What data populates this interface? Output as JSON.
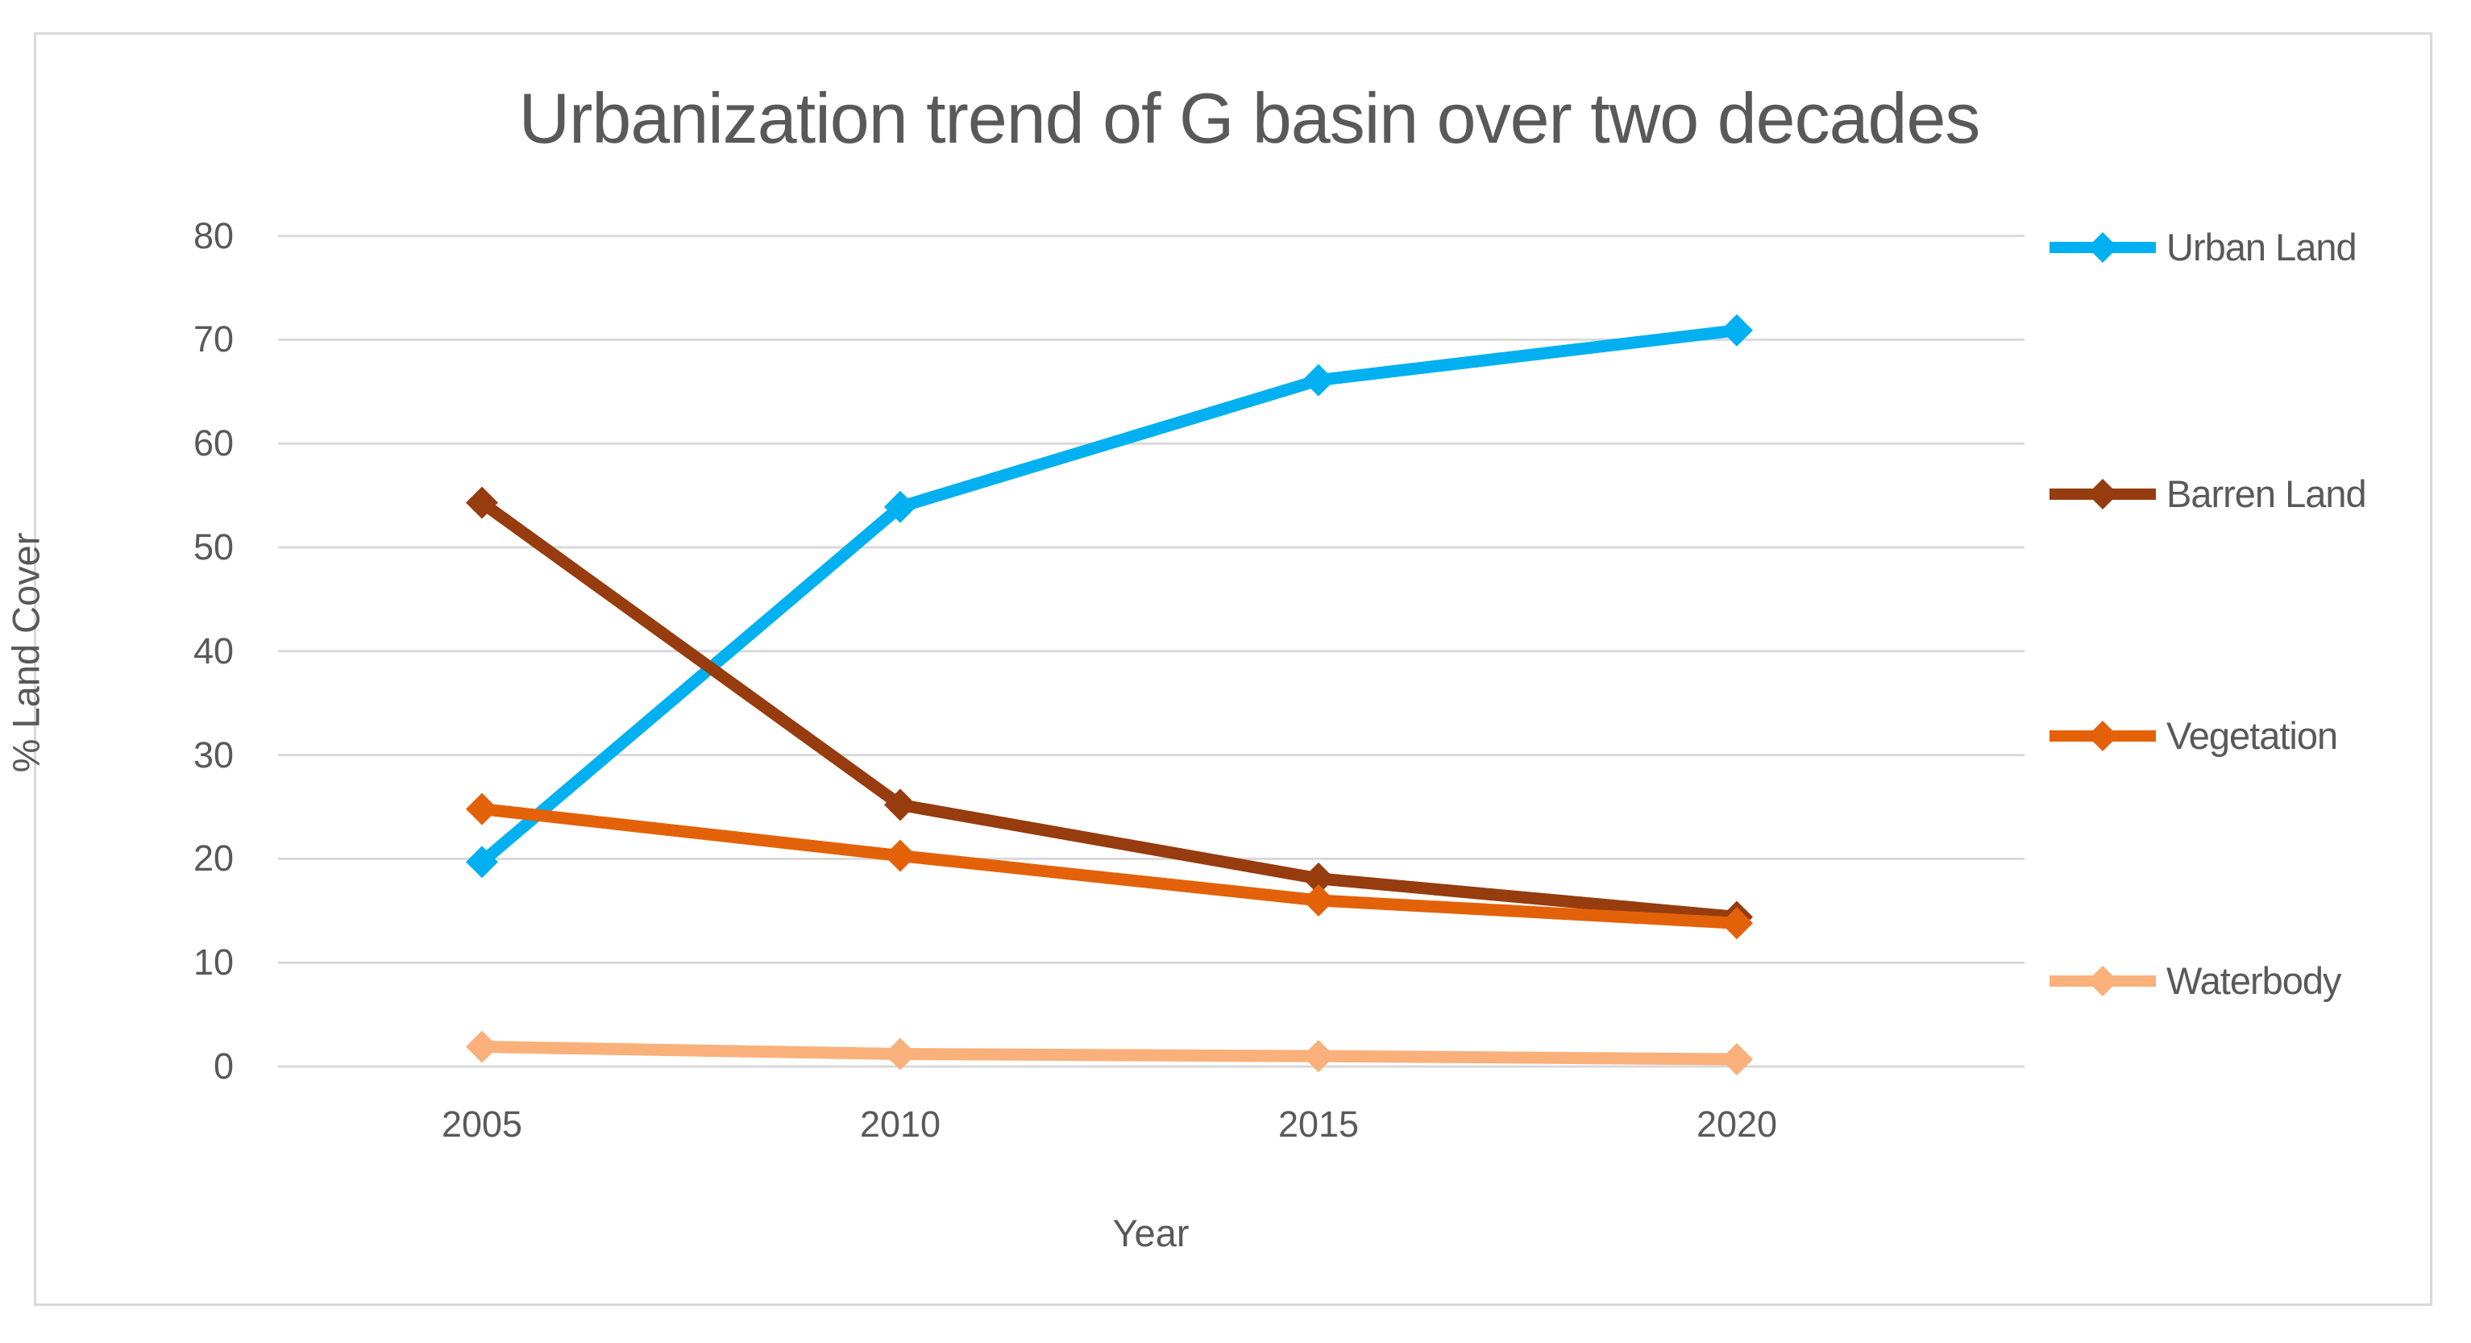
{
  "title": "Urbanization trend of G basin over two decades",
  "chart_data": {
    "type": "line",
    "x": [
      "2005",
      "2010",
      "2015",
      "2020"
    ],
    "xlabel": "Year",
    "ylabel": "% Land Cover",
    "ylim": [
      0,
      80
    ],
    "ytick_step": 10,
    "yticks": [
      "0",
      "10",
      "20",
      "30",
      "40",
      "50",
      "60",
      "70",
      "80"
    ],
    "grid": true,
    "marker": "diamond",
    "legend_position": "right",
    "series": [
      {
        "name": "Urban Land",
        "color": "#00B0F0",
        "values": [
          19.7,
          53.9,
          66.1,
          70.9
        ]
      },
      {
        "name": "Barren Land",
        "color": "#963C0E",
        "values": [
          54.3,
          25.2,
          18.1,
          14.4
        ]
      },
      {
        "name": "Vegetation",
        "color": "#E36209",
        "values": [
          24.8,
          20.3,
          16.0,
          13.8
        ]
      },
      {
        "name": "Waterbody",
        "color": "#F9B07A",
        "values": [
          1.9,
          1.2,
          1.0,
          0.7
        ]
      }
    ]
  },
  "colors": {
    "gridline": "#D9D9D9",
    "frame": "#D9D9D9",
    "text": "#595959",
    "background": "#FFFFFF"
  }
}
